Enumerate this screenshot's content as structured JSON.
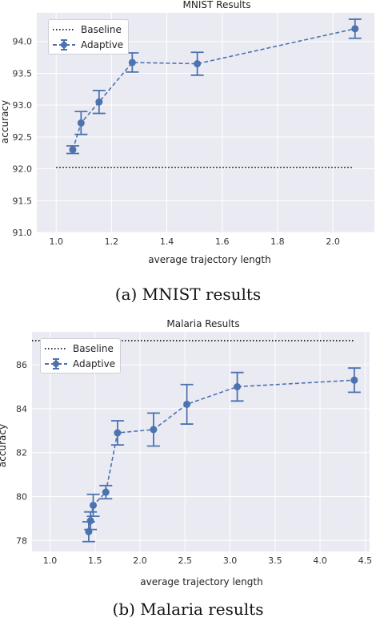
{
  "figure_a": {
    "caption": "(a) MNIST results",
    "chart_data": {
      "type": "line",
      "title": "MNIST Results",
      "xlabel": "average trajectory length",
      "ylabel": "accuracy",
      "xlim": [
        0.93,
        2.15
      ],
      "ylim": [
        91.0,
        94.45
      ],
      "xticks": [
        "1.0",
        "1.2",
        "1.4",
        "1.6",
        "1.8",
        "2.0"
      ],
      "yticks": [
        "91.0",
        "91.5",
        "92.0",
        "92.5",
        "93.0",
        "93.5",
        "94.0"
      ],
      "grid": true,
      "legend_position": "top-left",
      "baseline": {
        "name": "Baseline",
        "y": 92.02,
        "x_range": [
          1.0,
          2.07
        ]
      },
      "series": [
        {
          "name": "Adaptive",
          "x": [
            1.06,
            1.09,
            1.155,
            1.275,
            1.51,
            2.08
          ],
          "y": [
            92.3,
            92.72,
            93.05,
            93.67,
            93.65,
            94.2
          ],
          "err": [
            0.06,
            0.18,
            0.18,
            0.15,
            0.18,
            0.15
          ]
        }
      ]
    }
  },
  "figure_b": {
    "caption": "(b) Malaria results",
    "chart_data": {
      "type": "line",
      "title": "Malaria Results",
      "xlabel": "average trajectory length",
      "ylabel": "accuracy",
      "xlim": [
        0.8,
        4.55
      ],
      "ylim": [
        77.5,
        87.5
      ],
      "xticks": [
        "1.0",
        "1.5",
        "2.0",
        "2.5",
        "3.0",
        "3.5",
        "4.0",
        "4.5"
      ],
      "yticks": [
        "78",
        "80",
        "82",
        "84",
        "86"
      ],
      "grid": true,
      "legend_position": "top-left",
      "baseline": {
        "name": "Baseline",
        "y": 87.1,
        "x_range": [
          0.8,
          4.38
        ]
      },
      "series": [
        {
          "name": "Adaptive",
          "x": [
            1.43,
            1.45,
            1.48,
            1.62,
            1.75,
            2.15,
            2.52,
            3.08,
            4.38
          ],
          "y": [
            78.4,
            78.9,
            79.6,
            80.2,
            82.9,
            83.05,
            84.2,
            85.0,
            85.3
          ],
          "err": [
            0.45,
            0.4,
            0.5,
            0.3,
            0.55,
            0.75,
            0.9,
            0.65,
            0.55
          ]
        }
      ]
    }
  },
  "legend": {
    "baseline_label": "Baseline",
    "adaptive_label": "Adaptive"
  },
  "colors": {
    "plot_background": "#eaeaf2",
    "grid": "#ffffff",
    "adaptive": "#4c72b0",
    "baseline": "#333333"
  }
}
